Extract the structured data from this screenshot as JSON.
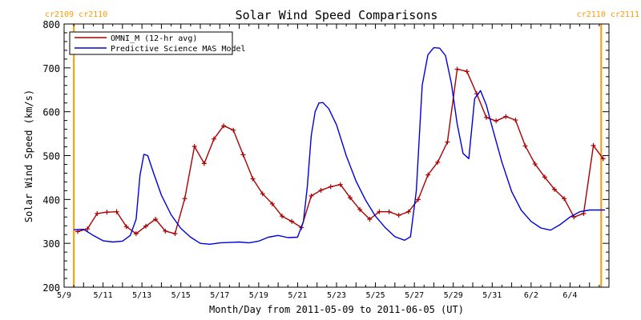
{
  "chart_data": {
    "type": "line",
    "title": "Solar Wind Speed Comparisons",
    "xlabel": "Month/Day from 2011-05-09 to 2011-06-05 (UT)",
    "ylabel": "Solar Wind Speed (km/s)",
    "xlim": [
      0,
      28
    ],
    "ylim": [
      200,
      800
    ],
    "grid": false,
    "legend": "top-left",
    "x_unit": "days from 2011-05-09 00:00 UT",
    "xticks": [
      {
        "x": 0,
        "label": "5/9"
      },
      {
        "x": 2,
        "label": "5/11"
      },
      {
        "x": 4,
        "label": "5/13"
      },
      {
        "x": 6,
        "label": "5/15"
      },
      {
        "x": 8,
        "label": "5/17"
      },
      {
        "x": 10,
        "label": "5/19"
      },
      {
        "x": 12,
        "label": "5/21"
      },
      {
        "x": 14,
        "label": "5/23"
      },
      {
        "x": 16,
        "label": "5/25"
      },
      {
        "x": 18,
        "label": "5/27"
      },
      {
        "x": 20,
        "label": "5/29"
      },
      {
        "x": 22,
        "label": "5/31"
      },
      {
        "x": 24,
        "label": "6/2"
      },
      {
        "x": 26,
        "label": "6/4"
      }
    ],
    "yticks": [
      200,
      300,
      400,
      500,
      600,
      700,
      800
    ],
    "rotation_markers": [
      {
        "x": 0.5,
        "labels": [
          "cr2109",
          "cr2110"
        ],
        "side": "left"
      },
      {
        "x": 27.6,
        "labels": [
          "cr2110",
          "cr2111"
        ],
        "side": "right"
      }
    ],
    "series": [
      {
        "name": "OMNI_M (12-hr avg)",
        "color": "#aa0000",
        "marker": "plus",
        "x": [
          0.7,
          1.2,
          1.7,
          2.2,
          2.7,
          3.2,
          3.7,
          4.2,
          4.7,
          5.2,
          5.7,
          6.2,
          6.7,
          7.2,
          7.7,
          8.2,
          8.7,
          9.2,
          9.7,
          10.2,
          10.7,
          11.2,
          11.7,
          12.2,
          12.7,
          13.2,
          13.7,
          14.2,
          14.7,
          15.2,
          15.7,
          16.2,
          16.7,
          17.2,
          17.7,
          18.2,
          18.7,
          19.2,
          19.7,
          20.2,
          20.7,
          21.2,
          21.7,
          22.2,
          22.7,
          23.2,
          23.7,
          24.2,
          24.7,
          25.2,
          25.7,
          26.2,
          26.7,
          27.2,
          27.7
        ],
        "y": [
          327,
          333,
          368,
          371,
          372,
          338,
          322,
          339,
          355,
          328,
          322,
          402,
          521,
          482,
          538,
          568,
          558,
          502,
          447,
          413,
          390,
          362,
          350,
          336,
          408,
          421,
          429,
          434,
          404,
          377,
          355,
          372,
          372,
          364,
          372,
          400,
          456,
          485,
          531,
          697,
          692,
          641,
          587,
          579,
          589,
          581,
          522,
          481,
          451,
          423,
          402,
          360,
          368,
          523,
          493
        ]
      },
      {
        "name": "Predictive Science MAS Model",
        "color": "#0000dd",
        "marker": "none",
        "x": [
          0.5,
          1.0,
          1.5,
          2.0,
          2.5,
          3.0,
          3.4,
          3.7,
          3.9,
          4.1,
          4.3,
          4.6,
          5.0,
          5.5,
          6.0,
          6.5,
          7.0,
          7.5,
          8.0,
          8.5,
          9.0,
          9.5,
          10.0,
          10.5,
          11.0,
          11.5,
          12.0,
          12.3,
          12.5,
          12.7,
          12.9,
          13.1,
          13.3,
          13.6,
          14.0,
          14.5,
          15.0,
          15.5,
          16.0,
          16.5,
          17.0,
          17.5,
          17.8,
          18.1,
          18.4,
          18.7,
          19.0,
          19.3,
          19.6,
          19.9,
          20.2,
          20.5,
          20.8,
          21.1,
          21.4,
          21.7,
          22.0,
          22.5,
          23.0,
          23.5,
          24.0,
          24.5,
          25.0,
          25.5,
          26.0,
          26.5,
          27.0,
          27.5,
          27.8
        ],
        "y": [
          331,
          332,
          318,
          306,
          303,
          305,
          318,
          355,
          455,
          503,
          500,
          460,
          410,
          365,
          334,
          314,
          300,
          298,
          301,
          302,
          303,
          301,
          305,
          314,
          318,
          313,
          314,
          350,
          430,
          545,
          600,
          620,
          621,
          607,
          570,
          500,
          442,
          398,
          362,
          336,
          315,
          307,
          315,
          420,
          660,
          730,
          746,
          745,
          728,
          665,
          572,
          505,
          493,
          630,
          648,
          615,
          565,
          485,
          418,
          375,
          350,
          335,
          330,
          343,
          360,
          372,
          376,
          376,
          376
        ]
      }
    ]
  }
}
